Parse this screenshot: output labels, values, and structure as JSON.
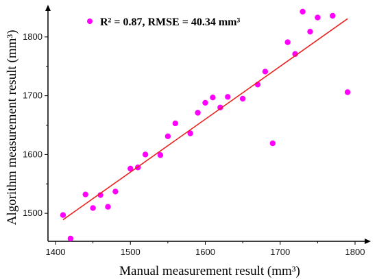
{
  "chart_data": {
    "type": "scatter",
    "xlabel": "Manual measurement result (mm³)",
    "ylabel": "Algorithm measurement result (mm³)",
    "xlim": [
      1400,
      1800
    ],
    "ylim": [
      1450,
      1850
    ],
    "x_ticks": [
      1400,
      1500,
      1600,
      1700,
      1800
    ],
    "y_ticks": [
      1500,
      1600,
      1700,
      1800
    ],
    "grid": false,
    "legend": {
      "placement": "top-left",
      "text": "R² = 0.87,  RMSE = 40.34 mm³",
      "marker_color": "#ff00ff"
    },
    "series": [
      {
        "color": "#ff00ff",
        "points": [
          [
            1420,
            1457
          ],
          [
            1410,
            1497
          ],
          [
            1440,
            1532
          ],
          [
            1460,
            1531
          ],
          [
            1450,
            1509
          ],
          [
            1470,
            1511
          ],
          [
            1480,
            1537
          ],
          [
            1500,
            1576
          ],
          [
            1510,
            1578
          ],
          [
            1520,
            1600
          ],
          [
            1540,
            1599
          ],
          [
            1550,
            1631
          ],
          [
            1560,
            1653
          ],
          [
            1580,
            1636
          ],
          [
            1590,
            1671
          ],
          [
            1600,
            1688
          ],
          [
            1610,
            1697
          ],
          [
            1620,
            1680
          ],
          [
            1630,
            1698
          ],
          [
            1650,
            1695
          ],
          [
            1670,
            1719
          ],
          [
            1680,
            1741
          ],
          [
            1690,
            1619
          ],
          [
            1710,
            1791
          ],
          [
            1720,
            1771
          ],
          [
            1730,
            1843
          ],
          [
            1740,
            1809
          ],
          [
            1750,
            1833
          ],
          [
            1770,
            1836
          ],
          [
            1790,
            1706
          ]
        ]
      }
    ],
    "fit_line": {
      "color": "#e8231f",
      "x": [
        1410,
        1790
      ],
      "y": [
        1489,
        1831
      ]
    },
    "colors": {
      "axis": "#000000",
      "points": "#ff00ff",
      "fit": "#e8231f"
    }
  }
}
